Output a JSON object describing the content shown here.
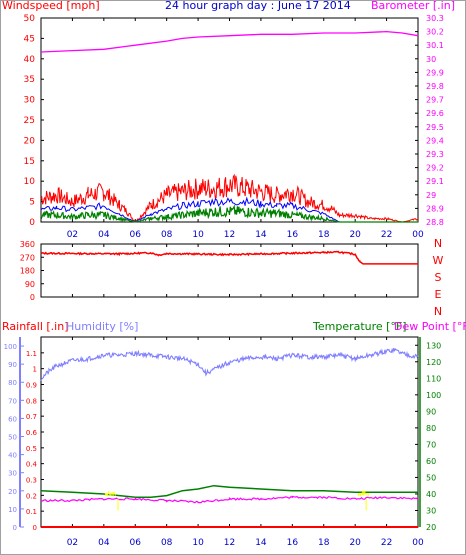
{
  "header": {
    "wind_label": "Windspeed [mph]",
    "title": "24 hour graph day : June 17 2014",
    "baro_label": "Barometer [.in]"
  },
  "bottom_header": {
    "rain_label": "Rainfall [.in]",
    "humidity_label": "Humidity [%]",
    "temp_label": "Temperature [°F]",
    "dew_label": "Dew Point [°F]"
  },
  "colors": {
    "wind": "#ff0000",
    "gust": "#ff0000",
    "avg_wind": "#0000ff",
    "low_wind": "#008000",
    "barometer": "#ff00ff",
    "direction": "#ff0000",
    "humidity": "#8080ff",
    "temperature": "#008000",
    "dew_point": "#ff00ff",
    "rain": "#ff0000",
    "yellow_marks": "#ffff00",
    "title": "#0000cc"
  },
  "x_ticks": [
    "02",
    "04",
    "06",
    "08",
    "10",
    "12",
    "14",
    "16",
    "18",
    "20",
    "22",
    "00"
  ],
  "chart_data": [
    {
      "type": "line",
      "name": "wind-barometer",
      "x_range_hours": [
        0,
        24
      ],
      "left_axis": {
        "label": "Windspeed [mph]",
        "range": [
          0,
          50
        ],
        "ticks": [
          0,
          5,
          10,
          15,
          20,
          25,
          30,
          35,
          40,
          45,
          50
        ]
      },
      "right_axis": {
        "label": "Barometer [.in]",
        "range": [
          28.8,
          30.3
        ],
        "ticks": [
          "28.8",
          "28.9",
          "29",
          "29.1",
          "29.2",
          "29.3",
          "29.4",
          "29.5",
          "29.6",
          "29.7",
          "29.8",
          "29.9",
          "30",
          "30.1",
          "30.2",
          "30.3"
        ]
      },
      "series": {
        "barometer": {
          "x": [
            0,
            2,
            4,
            6,
            8,
            9,
            10,
            12,
            14,
            16,
            18,
            20,
            22,
            23,
            24
          ],
          "y": [
            30.05,
            30.06,
            30.07,
            30.1,
            30.13,
            30.15,
            30.16,
            30.17,
            30.18,
            30.18,
            30.19,
            30.19,
            30.2,
            30.19,
            30.17
          ]
        },
        "wind_gust_envelope": {
          "x": [
            0,
            1,
            2,
            3,
            4,
            5,
            5.5,
            6,
            7,
            8,
            9,
            10,
            11,
            12,
            13,
            14,
            15,
            16,
            17,
            18,
            18.5,
            19,
            20,
            21,
            22,
            23,
            24
          ],
          "y": [
            7,
            8,
            6,
            8,
            9,
            5,
            3,
            0,
            5,
            8,
            9,
            10,
            10,
            11,
            10,
            9,
            8,
            9,
            6,
            5,
            4,
            2,
            2,
            1,
            1,
            0,
            1
          ]
        },
        "average_wind": {
          "x": [
            0,
            1,
            2,
            3,
            4,
            5,
            6,
            7,
            8,
            9,
            10,
            11,
            12,
            13,
            14,
            15,
            16,
            17,
            18,
            19,
            20,
            24
          ],
          "y": [
            3,
            3.5,
            3,
            3.5,
            4,
            2,
            0,
            2,
            3,
            4,
            4.5,
            5,
            5,
            5,
            4.5,
            4,
            4,
            3,
            2,
            0,
            0,
            0
          ]
        },
        "low_wind": {
          "x": [
            0,
            1,
            2,
            3,
            4,
            5,
            6,
            7,
            8,
            9,
            10,
            11,
            12,
            13,
            14,
            15,
            16,
            17,
            18,
            19,
            24
          ],
          "y": [
            2,
            2,
            1.5,
            2,
            2,
            1,
            0,
            1,
            1.5,
            2,
            2.5,
            3,
            3,
            3,
            2.5,
            2.5,
            2,
            1.5,
            1,
            0,
            0
          ]
        }
      }
    },
    {
      "type": "line",
      "name": "wind-direction",
      "x_range_hours": [
        0,
        24
      ],
      "left_axis": {
        "range": [
          0,
          360
        ],
        "ticks": [
          0,
          90,
          180,
          270,
          360
        ]
      },
      "right_labels": [
        "N",
        "W",
        "S",
        "E",
        "N"
      ],
      "series": {
        "direction": {
          "x": [
            0,
            5,
            7,
            7.5,
            8,
            12,
            17,
            19,
            20,
            20.3,
            20.5,
            24
          ],
          "y": [
            297,
            293,
            300,
            285,
            295,
            288,
            300,
            305,
            290,
            240,
            225,
            225
          ]
        }
      }
    },
    {
      "type": "line",
      "name": "rain-humidity-temperature",
      "x_range_hours": [
        0,
        24
      ],
      "rain_axis": {
        "label": "Rainfall [.in]",
        "range": [
          0,
          1.2
        ],
        "ticks": [
          "0",
          "0.1",
          "0.2",
          "0.3",
          "0.4",
          "0.5",
          "0.6",
          "0.7",
          "0.8",
          "0.9",
          "1",
          "1.1"
        ]
      },
      "humidity_axis": {
        "label": "Humidity [%]",
        "range": [
          0,
          105
        ],
        "ticks": [
          0,
          10,
          20,
          30,
          40,
          50,
          60,
          70,
          80,
          90,
          100
        ]
      },
      "temp_axis": {
        "label": "Temperature [°F]",
        "range": [
          20,
          135
        ],
        "ticks": [
          20,
          30,
          40,
          50,
          60,
          70,
          80,
          90,
          100,
          110,
          120,
          130
        ]
      },
      "series": {
        "humidity": {
          "x": [
            0,
            0.5,
            1,
            2,
            3,
            4,
            5,
            6,
            7,
            8,
            9,
            10,
            10.5,
            11,
            12,
            13,
            14,
            15,
            16,
            17,
            18,
            19,
            20,
            21,
            22,
            22.5,
            23,
            24
          ],
          "y": [
            82,
            86,
            89,
            92,
            93,
            95,
            95,
            96,
            95,
            94,
            93,
            90,
            85,
            87,
            91,
            93,
            94,
            93,
            95,
            94,
            94,
            95,
            93,
            95,
            97,
            98,
            96,
            94
          ]
        },
        "temperature": {
          "x": [
            0,
            2,
            4,
            6,
            7,
            8,
            9,
            10,
            11,
            12,
            14,
            16,
            18,
            20,
            22,
            24
          ],
          "y": [
            42,
            41,
            40,
            38,
            38,
            39,
            42,
            43,
            45,
            44,
            43,
            42,
            42,
            41,
            41,
            41
          ]
        },
        "dew_point": {
          "x": [
            0,
            2,
            4,
            6,
            8,
            10,
            12,
            14,
            16,
            18,
            20,
            22,
            24
          ],
          "y": [
            36,
            36,
            37,
            37,
            36,
            35,
            37,
            37,
            38,
            38,
            37,
            38,
            37
          ]
        },
        "rain": {
          "x": [
            0,
            24
          ],
          "y": [
            0,
            0
          ]
        }
      }
    }
  ]
}
